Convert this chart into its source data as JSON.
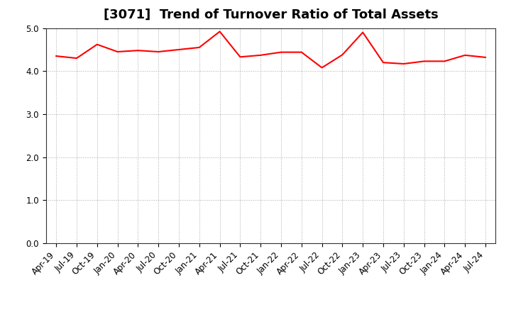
{
  "title": "[3071]  Trend of Turnover Ratio of Total Assets",
  "x_labels": [
    "Apr-19",
    "Jul-19",
    "Oct-19",
    "Jan-20",
    "Apr-20",
    "Jul-20",
    "Oct-20",
    "Jan-21",
    "Apr-21",
    "Jul-21",
    "Oct-21",
    "Jan-22",
    "Apr-22",
    "Jul-22",
    "Oct-22",
    "Jan-23",
    "Apr-23",
    "Jul-23",
    "Oct-23",
    "Jan-24",
    "Apr-24",
    "Jul-24"
  ],
  "y_values": [
    4.35,
    4.3,
    4.62,
    4.45,
    4.48,
    4.45,
    4.5,
    4.55,
    4.92,
    4.33,
    4.37,
    4.44,
    4.44,
    4.08,
    4.38,
    4.9,
    4.2,
    4.17,
    4.23,
    4.23,
    4.37,
    4.32
  ],
  "line_color": "#FF0000",
  "line_width": 1.5,
  "ylim": [
    0.0,
    5.0
  ],
  "yticks": [
    0.0,
    1.0,
    2.0,
    3.0,
    4.0,
    5.0
  ],
  "background_color": "#FFFFFF",
  "grid_color": "#AAAAAA",
  "title_fontsize": 13,
  "tick_fontsize": 8.5
}
